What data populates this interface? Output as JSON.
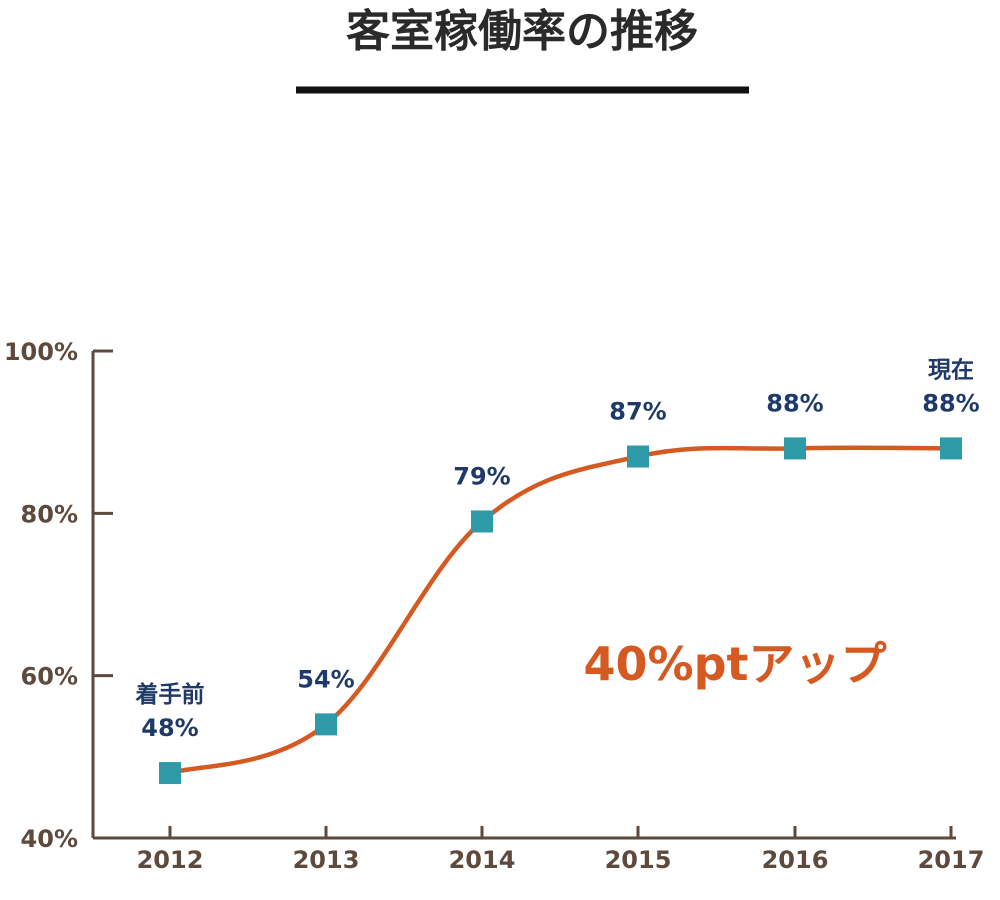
{
  "chart_data": {
    "type": "line",
    "title": "客室稼働率の推移",
    "categories": [
      "2012",
      "2013",
      "2014",
      "2015",
      "2016",
      "2017"
    ],
    "series": [
      {
        "values": [
          48,
          54,
          79,
          87,
          88,
          88
        ]
      }
    ],
    "point_labels": [
      "48%",
      "54%",
      "79%",
      "87%",
      "88%",
      "88%"
    ],
    "point_prefixes": [
      "着手前",
      "",
      "",
      "",
      "",
      "現在"
    ],
    "ylim": [
      40,
      100
    ],
    "yticks": [
      40,
      60,
      80,
      100
    ],
    "ytick_labels": [
      "40%",
      "60%",
      "80%",
      "100%"
    ],
    "annotation": "40%ptアップ",
    "grid": false,
    "legend": "none"
  },
  "colors": {
    "line": "#d55a21",
    "marker": "#2f9aa7",
    "axis": "#5e4a3c",
    "tick_text": "#5e4a3c",
    "data_label": "#1f3a68",
    "title": "#2a2a2a",
    "annotation": "#d55a21"
  }
}
